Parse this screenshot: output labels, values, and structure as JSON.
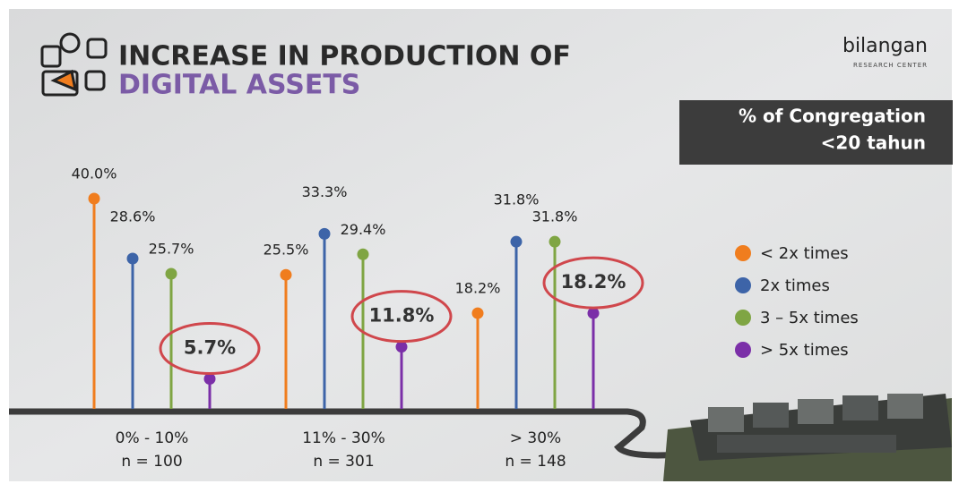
{
  "header": {
    "title_line1": "INCREASE IN PRODUCTION OF",
    "title_line2": "DIGITAL ASSETS",
    "logo": "bilangan",
    "logo_sub": "RESEARCH CENTER",
    "box_line1": "% of Congregation",
    "box_line2": "<20 tahun"
  },
  "chart_data": {
    "type": "lollipop",
    "categories": [
      "0% - 10%",
      "11% - 30%",
      "> 30%"
    ],
    "category_notes": [
      "n = 100",
      "n = 301",
      "n = 148"
    ],
    "series": [
      {
        "name": "< 2x times",
        "color": "#f07d1e",
        "values": [
          40.0,
          25.5,
          18.2
        ],
        "value_labels": [
          "40.0%",
          "25.5%",
          "18.2%"
        ]
      },
      {
        "name": "2x times",
        "color": "#3d64a8",
        "values": [
          28.6,
          33.3,
          31.8
        ],
        "value_labels": [
          "28.6%",
          "33.3%",
          "31.8%"
        ]
      },
      {
        "name": "3 – 5x times",
        "color": "#7fa543",
        "values": [
          25.7,
          29.4,
          31.8
        ],
        "value_labels": [
          "25.7%",
          "29.4%",
          "31.8%"
        ]
      },
      {
        "name": "> 5x times",
        "color": "#7b2fa8",
        "values": [
          5.7,
          11.8,
          18.2
        ],
        "value_labels": [
          "5.7%",
          "11.8%",
          "18.2%"
        ],
        "highlight": true
      }
    ]
  }
}
